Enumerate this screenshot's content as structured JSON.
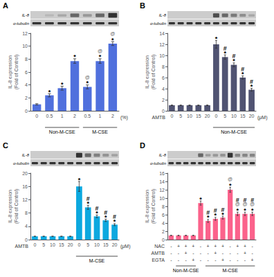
{
  "chart_data": [
    {
      "type": "bar",
      "title": "A",
      "categories": [
        "0",
        "0.5",
        "1",
        "2",
        "0.5",
        "1",
        "2"
      ],
      "values": [
        1.0,
        2.4,
        3.5,
        7.7,
        3.7,
        7.7,
        10.4
      ],
      "errors": [
        0.1,
        0.25,
        0.3,
        0.35,
        0.3,
        0.35,
        0.3
      ],
      "annotations": [
        [],
        [
          "*"
        ],
        [
          "*"
        ],
        [
          "*"
        ],
        [
          "*",
          "@"
        ],
        [
          "*",
          "@"
        ],
        [
          "*",
          "@"
        ]
      ],
      "ylabel": "IL-8 expression\n(Fold of Control)",
      "ylim": [
        0,
        12
      ],
      "yticks": [
        0,
        2,
        4,
        6,
        8,
        10,
        12
      ],
      "grid": false,
      "axis_note_right": "(%)",
      "groups": [
        {
          "label": "Non-M-CSE",
          "first": 1,
          "last": 3
        },
        {
          "label": "M-CSE",
          "first": 4,
          "last": 6
        }
      ],
      "blot": {
        "labels": [
          "IL-8",
          "α-tubulin"
        ],
        "il8": [
          0.0,
          0.4,
          0.7,
          2.0,
          1.0,
          2.0,
          3.0
        ]
      }
    },
    {
      "type": "bar",
      "title": "B",
      "categories": [
        "0",
        "5",
        "10",
        "15",
        "20",
        "0",
        "5",
        "10",
        "15",
        "20"
      ],
      "values": [
        1.0,
        1.0,
        1.0,
        1.0,
        1.0,
        12.0,
        9.7,
        8.3,
        6.0,
        3.8
      ],
      "errors": [
        0.05,
        0.05,
        0.05,
        0.05,
        0.05,
        0.7,
        0.4,
        0.35,
        0.3,
        0.25
      ],
      "annotations": [
        [],
        [],
        [],
        [],
        [],
        [
          "*"
        ],
        [
          "*",
          "#"
        ],
        [
          "*",
          "#"
        ],
        [
          "*",
          "#"
        ],
        [
          "*",
          "#"
        ]
      ],
      "ylabel": "IL-8 expression\n(Fold of Control)",
      "ylim": [
        0,
        14
      ],
      "yticks": [
        0,
        2,
        4,
        6,
        8,
        10,
        12,
        14
      ],
      "grid": false,
      "axis_note_left": "AMTB",
      "axis_note_right": "(μM)",
      "groups": [
        {
          "label": "Non-M-CSE",
          "first": 5,
          "last": 9
        }
      ],
      "blot": {
        "labels": [
          "IL-8",
          "α-tubulin"
        ],
        "il8": [
          0.0,
          0.0,
          0.0,
          0.0,
          0.0,
          2.5,
          2.0,
          1.6,
          1.2,
          0.7
        ]
      }
    },
    {
      "type": "bar",
      "title": "C",
      "categories": [
        "0",
        "5",
        "10",
        "15",
        "20",
        "0",
        "5",
        "10",
        "15",
        "20"
      ],
      "values": [
        1.0,
        1.0,
        1.0,
        1.0,
        1.0,
        16.0,
        9.7,
        7.0,
        5.8,
        4.5
      ],
      "errors": [
        0.05,
        0.05,
        0.05,
        0.05,
        0.05,
        1.5,
        0.6,
        0.4,
        0.35,
        0.3
      ],
      "annotations": [
        [],
        [],
        [],
        [],
        [],
        [
          "*"
        ],
        [
          "*",
          "#"
        ],
        [
          "*",
          "#"
        ],
        [
          "*",
          "#"
        ],
        [
          "*",
          "#"
        ]
      ],
      "ylabel": "IL-8 expression\n(Fold of Control)",
      "ylim": [
        0,
        20
      ],
      "yticks": [
        0,
        4,
        8,
        12,
        16,
        20
      ],
      "grid": false,
      "axis_note_left": "AMTB",
      "axis_note_right": "(μM)",
      "groups": [
        {
          "label": "M-CSE",
          "first": 5,
          "last": 9
        }
      ],
      "blot": {
        "labels": [
          "IL-8",
          "α-tubulin"
        ],
        "il8": [
          0.0,
          0.0,
          0.0,
          0.0,
          0.0,
          3.0,
          2.0,
          1.5,
          1.1,
          0.8
        ]
      }
    },
    {
      "type": "bar",
      "title": "D",
      "categories": [
        null,
        null,
        null,
        null,
        null,
        null,
        null,
        null,
        null,
        null,
        null,
        null
      ],
      "values": [
        1.0,
        1.0,
        1.0,
        1.0,
        8.8,
        4.5,
        5.0,
        5.3,
        12.0,
        6.2,
        6.2,
        6.2
      ],
      "errors": [
        0.05,
        0.05,
        0.05,
        0.05,
        0.5,
        0.35,
        0.35,
        0.35,
        0.6,
        0.4,
        0.4,
        0.4
      ],
      "annotations": [
        [],
        [],
        [],
        [],
        [
          "*"
        ],
        [
          "*",
          "#"
        ],
        [
          "*",
          "#"
        ],
        [
          "*",
          "#"
        ],
        [
          "*",
          "@"
        ],
        [
          "*",
          "@",
          "#"
        ],
        [
          "*",
          "@",
          "#"
        ],
        [
          "*",
          "@",
          "#"
        ]
      ],
      "rows": [
        {
          "label": "NAC",
          "values": [
            "-",
            "+",
            "+",
            "+",
            "-",
            "+",
            "+",
            "+",
            "-",
            "+",
            "+",
            "-"
          ]
        },
        {
          "label": "AMTB",
          "values": [
            "-",
            "-",
            "+",
            "-",
            "-",
            "-",
            "+",
            "-",
            "-",
            "-",
            "+",
            "-"
          ]
        },
        {
          "label": "EGTA",
          "values": [
            "-",
            "-",
            "-",
            "+",
            "-",
            "-",
            "-",
            "+",
            "-",
            "-",
            "-",
            "+"
          ]
        }
      ],
      "ylabel": "IL-8 expression\n(Fold of Control)",
      "ylim": [
        0,
        16
      ],
      "yticks": [
        0,
        2,
        4,
        6,
        8,
        10,
        12,
        14,
        16
      ],
      "grid": false,
      "groups": [
        {
          "label": "Non-M-CSE",
          "first": 1,
          "last": 3
        },
        {
          "label": "M-CSE",
          "first": 5,
          "last": 11
        }
      ],
      "blot": {
        "labels": [
          "IL-8",
          "α-tubulin"
        ],
        "il8": [
          0.0,
          0.0,
          0.0,
          0.0,
          2.0,
          0.9,
          1.0,
          1.1,
          3.0,
          1.4,
          1.4,
          1.4
        ]
      }
    }
  ]
}
